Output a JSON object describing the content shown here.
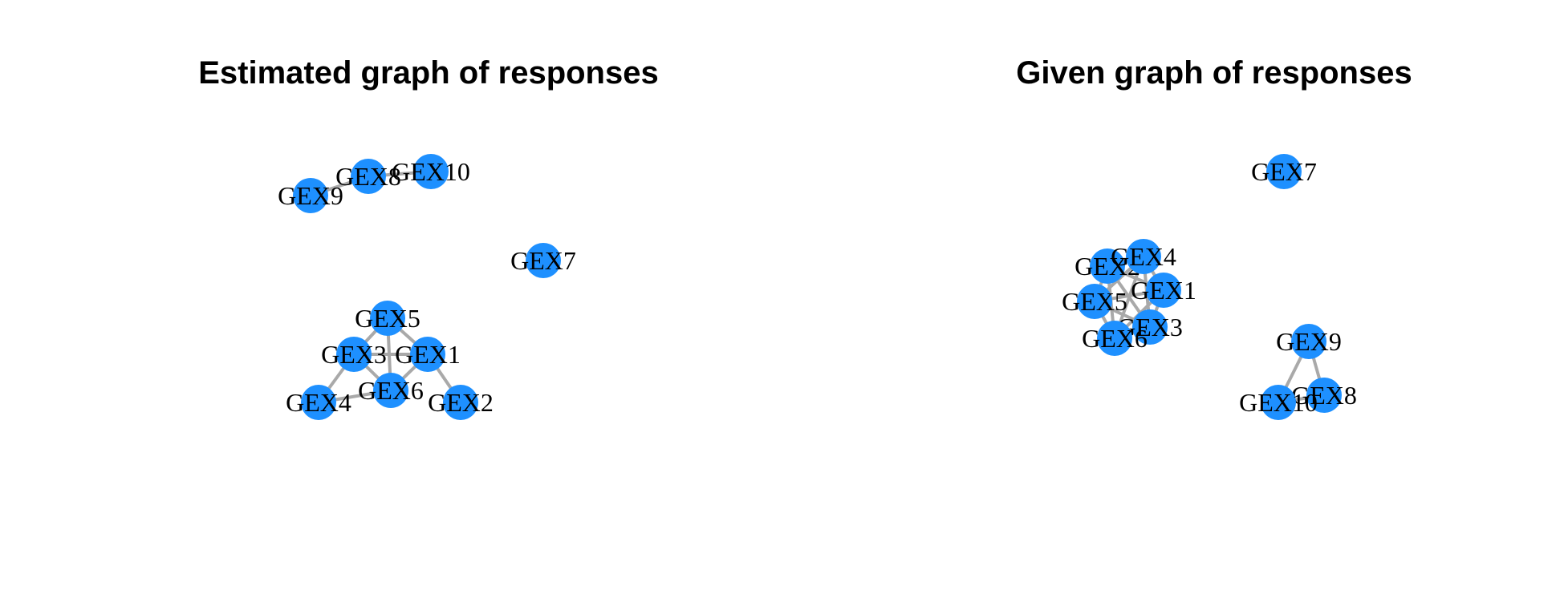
{
  "panels": [
    {
      "title": "Estimated graph of responses",
      "node_color": "#1e90ff",
      "edge_color": "#a9a9a9",
      "nodes": [
        "GEX1",
        "GEX2",
        "GEX3",
        "GEX4",
        "GEX5",
        "GEX6",
        "GEX7",
        "GEX8",
        "GEX9",
        "GEX10"
      ],
      "edges": [
        [
          "GEX5",
          "GEX3"
        ],
        [
          "GEX5",
          "GEX1"
        ],
        [
          "GEX5",
          "GEX6"
        ],
        [
          "GEX3",
          "GEX1"
        ],
        [
          "GEX3",
          "GEX6"
        ],
        [
          "GEX3",
          "GEX4"
        ],
        [
          "GEX1",
          "GEX6"
        ],
        [
          "GEX1",
          "GEX2"
        ],
        [
          "GEX6",
          "GEX4"
        ],
        [
          "GEX9",
          "GEX8"
        ],
        [
          "GEX8",
          "GEX10"
        ]
      ]
    },
    {
      "title": "Given graph of responses",
      "node_color": "#1e90ff",
      "edge_color": "#a9a9a9",
      "nodes": [
        "GEX1",
        "GEX2",
        "GEX3",
        "GEX4",
        "GEX5",
        "GEX6",
        "GEX7",
        "GEX8",
        "GEX9",
        "GEX10"
      ],
      "edges": [
        [
          "GEX2",
          "GEX4"
        ],
        [
          "GEX2",
          "GEX1"
        ],
        [
          "GEX2",
          "GEX5"
        ],
        [
          "GEX2",
          "GEX6"
        ],
        [
          "GEX2",
          "GEX3"
        ],
        [
          "GEX4",
          "GEX1"
        ],
        [
          "GEX4",
          "GEX5"
        ],
        [
          "GEX4",
          "GEX6"
        ],
        [
          "GEX4",
          "GEX3"
        ],
        [
          "GEX1",
          "GEX5"
        ],
        [
          "GEX1",
          "GEX6"
        ],
        [
          "GEX1",
          "GEX3"
        ],
        [
          "GEX5",
          "GEX6"
        ],
        [
          "GEX5",
          "GEX3"
        ],
        [
          "GEX6",
          "GEX3"
        ],
        [
          "GEX9",
          "GEX10"
        ],
        [
          "GEX9",
          "GEX8"
        ],
        [
          "GEX10",
          "GEX8"
        ]
      ]
    }
  ]
}
